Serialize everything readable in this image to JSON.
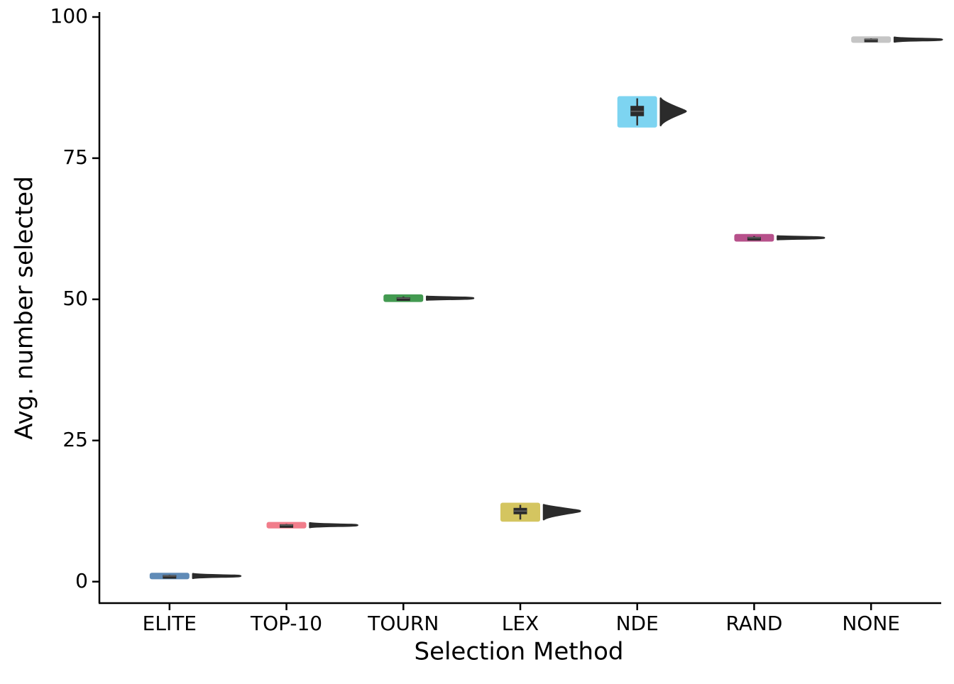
{
  "chart_data": {
    "type": "raincloud",
    "x_label": "Selection Method",
    "y_label": "Avg. number selected",
    "categories": [
      "ELITE",
      "TOP-10",
      "TOURN",
      "LEX",
      "NDE",
      "RAND",
      "NONE"
    ],
    "series": [
      {
        "name": "ELITE",
        "color": "#4477aa",
        "min": 0.8,
        "q1": 0.9,
        "median": 1,
        "q3": 1.1,
        "max": 1.2
      },
      {
        "name": "TOP-10",
        "color": "#ee6677",
        "min": 9.8,
        "q1": 9.9,
        "median": 10,
        "q3": 10.1,
        "max": 10.2
      },
      {
        "name": "TOURN",
        "color": "#228833",
        "min": 49.9,
        "q1": 50.1,
        "median": 50.2,
        "q3": 50.3,
        "max": 50.5
      },
      {
        "name": "LEX",
        "color": "#ccbb44",
        "min": 11,
        "q1": 12,
        "median": 12.5,
        "q3": 13,
        "max": 13.6
      },
      {
        "name": "NDE",
        "color": "#66ccee",
        "min": 80.8,
        "q1": 82.5,
        "median": 83.3,
        "q3": 84.2,
        "max": 85.6
      },
      {
        "name": "RAND",
        "color": "#aa3377",
        "min": 60.6,
        "q1": 60.8,
        "median": 60.9,
        "q3": 61,
        "max": 61.2
      },
      {
        "name": "NONE",
        "color": "#bbbbbb",
        "min": 95.8,
        "q1": 95.9,
        "median": 96,
        "q3": 96.1,
        "max": 96.2
      }
    ],
    "ylim": [
      -3.8,
      100.8
    ],
    "yticks": [
      0,
      25,
      50,
      75,
      100
    ]
  }
}
